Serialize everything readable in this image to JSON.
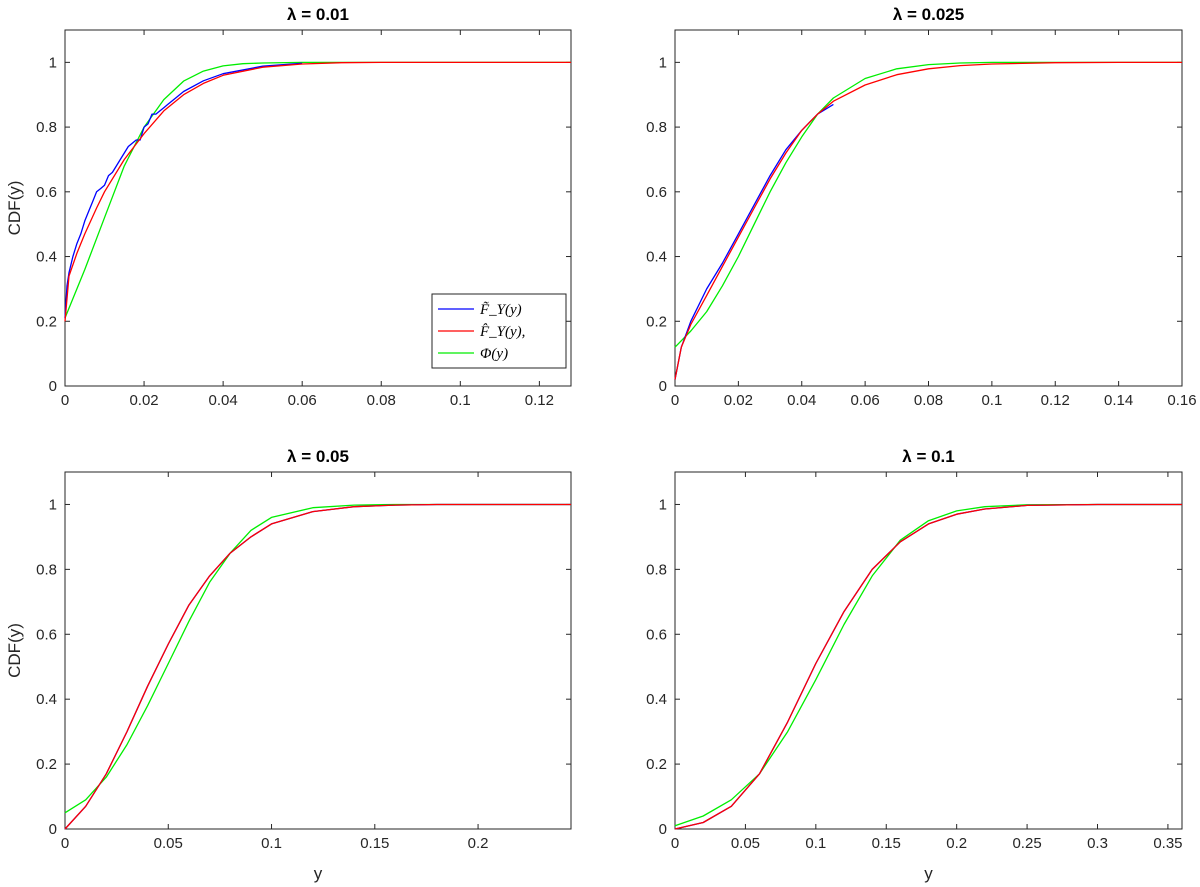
{
  "chart_data": [
    {
      "type": "line",
      "title": "λ = 0.01",
      "xlabel": "",
      "ylabel": "CDF(y)",
      "xlim": [
        0,
        0.128
      ],
      "ylim": [
        0,
        1.1
      ],
      "xticks": [
        0,
        0.02,
        0.04,
        0.06,
        0.08,
        0.1,
        0.12
      ],
      "xtick_labels": [
        "0",
        "0.02",
        "0.04",
        "0.06",
        "0.08",
        "0.1",
        "0.12"
      ],
      "yticks": [
        0,
        0.2,
        0.4,
        0.6,
        0.8,
        1
      ],
      "ytick_labels": [
        "0",
        "0.2",
        "0.4",
        "0.6",
        "0.8",
        "1"
      ],
      "legend": "bottom-right",
      "grid": false,
      "series": [
        {
          "name": "F̃_Y(y)",
          "color": "#0000ff",
          "x": [
            0,
            0.0005,
            0.001,
            0.002,
            0.003,
            0.004,
            0.005,
            0.006,
            0.007,
            0.008,
            0.009,
            0.01,
            0.011,
            0.012,
            0.013,
            0.014,
            0.016,
            0.018,
            0.019,
            0.02,
            0.021,
            0.022,
            0.023,
            0.024,
            0.025,
            0.026,
            0.028,
            0.03,
            0.035,
            0.04,
            0.05,
            0.06
          ],
          "y": [
            0.21,
            0.31,
            0.35,
            0.4,
            0.44,
            0.47,
            0.51,
            0.54,
            0.57,
            0.6,
            0.61,
            0.62,
            0.65,
            0.66,
            0.68,
            0.7,
            0.74,
            0.76,
            0.76,
            0.8,
            0.81,
            0.84,
            0.84,
            0.85,
            0.86,
            0.87,
            0.89,
            0.91,
            0.943,
            0.965,
            0.988,
            0.997
          ]
        },
        {
          "name": "F̂_Y(y),",
          "color": "#ff0000",
          "x": [
            0,
            0.001,
            0.003,
            0.005,
            0.008,
            0.01,
            0.015,
            0.02,
            0.025,
            0.03,
            0.035,
            0.04,
            0.05,
            0.06,
            0.07,
            0.08,
            0.1,
            0.128
          ],
          "y": [
            0.2,
            0.34,
            0.41,
            0.47,
            0.55,
            0.6,
            0.7,
            0.78,
            0.85,
            0.9,
            0.935,
            0.96,
            0.985,
            0.995,
            0.999,
            1,
            1,
            1
          ]
        },
        {
          "name": "Φ(y)",
          "color": "#00ee00",
          "x": [
            0,
            0.005,
            0.01,
            0.015,
            0.02,
            0.025,
            0.03,
            0.035,
            0.04,
            0.045,
            0.05,
            0.06,
            0.07,
            0.08,
            0.1,
            0.128
          ],
          "y": [
            0.21,
            0.36,
            0.52,
            0.68,
            0.8,
            0.885,
            0.942,
            0.973,
            0.989,
            0.996,
            0.998,
            1,
            1,
            1,
            1,
            1
          ]
        }
      ]
    },
    {
      "type": "line",
      "title": "λ = 0.025",
      "xlabel": "",
      "ylabel": "",
      "xlim": [
        0,
        0.16
      ],
      "ylim": [
        0,
        1.1
      ],
      "xticks": [
        0,
        0.02,
        0.04,
        0.06,
        0.08,
        0.1,
        0.12,
        0.14,
        0.16
      ],
      "xtick_labels": [
        "0",
        "0.02",
        "0.04",
        "0.06",
        "0.08",
        "0.1",
        "0.12",
        "0.14",
        "0.16"
      ],
      "yticks": [
        0,
        0.2,
        0.4,
        0.6,
        0.8,
        1
      ],
      "ytick_labels": [
        "0",
        "0.2",
        "0.4",
        "0.6",
        "0.8",
        "1"
      ],
      "grid": false,
      "series": [
        {
          "name": "F̃_Y(y)",
          "color": "#0000ff",
          "x": [
            0,
            0.002,
            0.005,
            0.01,
            0.015,
            0.02,
            0.025,
            0.03,
            0.035,
            0.04,
            0.045,
            0.05
          ],
          "y": [
            0.02,
            0.12,
            0.2,
            0.3,
            0.38,
            0.47,
            0.56,
            0.65,
            0.73,
            0.79,
            0.84,
            0.87
          ]
        },
        {
          "name": "F̂_Y(y),",
          "color": "#ff0000",
          "x": [
            0,
            0.002,
            0.005,
            0.01,
            0.015,
            0.02,
            0.025,
            0.03,
            0.035,
            0.04,
            0.045,
            0.05,
            0.06,
            0.07,
            0.08,
            0.09,
            0.1,
            0.12,
            0.14,
            0.16
          ],
          "y": [
            0.02,
            0.12,
            0.19,
            0.28,
            0.37,
            0.46,
            0.55,
            0.64,
            0.72,
            0.79,
            0.84,
            0.88,
            0.93,
            0.962,
            0.98,
            0.99,
            0.995,
            0.999,
            1,
            1
          ]
        },
        {
          "name": "Φ(y)",
          "color": "#00ee00",
          "x": [
            0,
            0.005,
            0.01,
            0.015,
            0.02,
            0.025,
            0.03,
            0.035,
            0.04,
            0.045,
            0.05,
            0.06,
            0.07,
            0.08,
            0.09,
            0.1,
            0.12,
            0.14,
            0.16
          ],
          "y": [
            0.12,
            0.17,
            0.23,
            0.31,
            0.4,
            0.5,
            0.6,
            0.69,
            0.77,
            0.84,
            0.89,
            0.95,
            0.98,
            0.993,
            0.998,
            1,
            1,
            1,
            1
          ]
        }
      ]
    },
    {
      "type": "line",
      "title": "λ = 0.05",
      "xlabel": "y",
      "ylabel": "CDF(y)",
      "xlim": [
        0,
        0.245
      ],
      "ylim": [
        0,
        1.1
      ],
      "xticks": [
        0,
        0.05,
        0.1,
        0.15,
        0.2
      ],
      "xtick_labels": [
        "0",
        "0.05",
        "0.1",
        "0.15",
        "0.2"
      ],
      "yticks": [
        0,
        0.2,
        0.4,
        0.6,
        0.8,
        1
      ],
      "ytick_labels": [
        "0",
        "0.2",
        "0.4",
        "0.6",
        "0.8",
        "1"
      ],
      "grid": false,
      "series": [
        {
          "name": "F̃_Y(y)",
          "color": "#0000ff",
          "x": [
            0,
            0.01,
            0.02,
            0.03,
            0.04,
            0.05,
            0.06,
            0.07,
            0.08,
            0.09,
            0.1,
            0.12,
            0.14,
            0.16,
            0.18,
            0.2,
            0.245
          ],
          "y": [
            0,
            0.07,
            0.17,
            0.3,
            0.44,
            0.57,
            0.69,
            0.78,
            0.85,
            0.9,
            0.94,
            0.978,
            0.993,
            0.998,
            1,
            1,
            1
          ]
        },
        {
          "name": "F̂_Y(y),",
          "color": "#ff0000",
          "x": [
            0,
            0.01,
            0.02,
            0.03,
            0.04,
            0.05,
            0.06,
            0.07,
            0.08,
            0.09,
            0.1,
            0.12,
            0.14,
            0.16,
            0.18,
            0.2,
            0.245
          ],
          "y": [
            0,
            0.07,
            0.17,
            0.3,
            0.44,
            0.57,
            0.69,
            0.78,
            0.85,
            0.9,
            0.94,
            0.978,
            0.993,
            0.998,
            1,
            1,
            1
          ]
        },
        {
          "name": "Φ(y)",
          "color": "#00ee00",
          "x": [
            0,
            0.01,
            0.02,
            0.03,
            0.04,
            0.05,
            0.06,
            0.07,
            0.08,
            0.09,
            0.1,
            0.12,
            0.14,
            0.16,
            0.18,
            0.245
          ],
          "y": [
            0.05,
            0.09,
            0.16,
            0.26,
            0.38,
            0.51,
            0.64,
            0.76,
            0.85,
            0.92,
            0.96,
            0.99,
            0.998,
            1,
            1,
            1
          ]
        }
      ]
    },
    {
      "type": "line",
      "title": "λ = 0.1",
      "xlabel": "y",
      "ylabel": "",
      "xlim": [
        0,
        0.36
      ],
      "ylim": [
        0,
        1.1
      ],
      "xticks": [
        0,
        0.05,
        0.1,
        0.15,
        0.2,
        0.25,
        0.3,
        0.35
      ],
      "xtick_labels": [
        "0",
        "0.05",
        "0.1",
        "0.15",
        "0.2",
        "0.25",
        "0.3",
        "0.35"
      ],
      "yticks": [
        0,
        0.2,
        0.4,
        0.6,
        0.8,
        1
      ],
      "ytick_labels": [
        "0",
        "0.2",
        "0.4",
        "0.6",
        "0.8",
        "1"
      ],
      "grid": false,
      "series": [
        {
          "name": "F̃_Y(y)",
          "color": "#0000ff",
          "x": [
            0,
            0.02,
            0.04,
            0.06,
            0.08,
            0.1,
            0.12,
            0.14,
            0.16,
            0.18,
            0.2,
            0.22,
            0.25,
            0.3,
            0.36
          ],
          "y": [
            0,
            0.02,
            0.07,
            0.17,
            0.33,
            0.51,
            0.67,
            0.8,
            0.885,
            0.94,
            0.97,
            0.986,
            0.997,
            1,
            1
          ]
        },
        {
          "name": "F̂_Y(y),",
          "color": "#ff0000",
          "x": [
            0,
            0.02,
            0.04,
            0.06,
            0.08,
            0.1,
            0.12,
            0.14,
            0.16,
            0.18,
            0.2,
            0.22,
            0.25,
            0.3,
            0.36
          ],
          "y": [
            0,
            0.02,
            0.07,
            0.17,
            0.33,
            0.51,
            0.67,
            0.8,
            0.885,
            0.94,
            0.97,
            0.986,
            0.997,
            1,
            1
          ]
        },
        {
          "name": "Φ(y)",
          "color": "#00ee00",
          "x": [
            0,
            0.02,
            0.04,
            0.06,
            0.08,
            0.1,
            0.12,
            0.14,
            0.16,
            0.18,
            0.2,
            0.22,
            0.25,
            0.3,
            0.36
          ],
          "y": [
            0.01,
            0.04,
            0.09,
            0.17,
            0.3,
            0.46,
            0.63,
            0.78,
            0.89,
            0.95,
            0.98,
            0.993,
            0.999,
            1,
            1
          ]
        }
      ]
    }
  ]
}
